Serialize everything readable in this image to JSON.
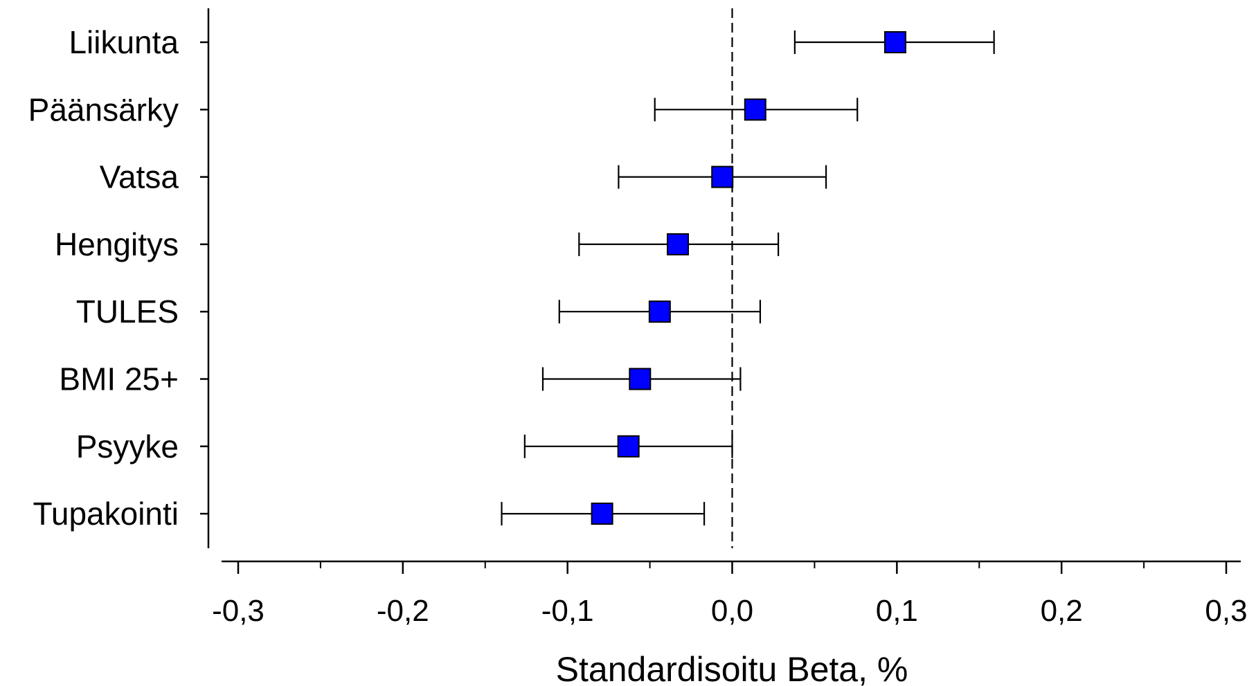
{
  "chart_data": {
    "type": "scatter",
    "subtype": "forest-plot",
    "title": "",
    "xlabel": "Standardisoitu Beta, %",
    "ylabel": "",
    "xlim": [
      -0.3,
      0.3
    ],
    "x_ticks": [
      -0.3,
      -0.2,
      -0.1,
      0.0,
      0.1,
      0.2,
      0.3
    ],
    "x_tick_labels": [
      "-0,3",
      "-0,2",
      "-0,1",
      "0,0",
      "0,1",
      "0,2",
      "0,3"
    ],
    "reference_line": 0.0,
    "grid": false,
    "marker_color": "#0000ff",
    "categories": [
      "Liikunta",
      "Päänsärky",
      "Vatsa",
      "Hengitys",
      "TULES",
      "BMI 25+",
      "Psyyke",
      "Tupakointi"
    ],
    "series": [
      {
        "estimates": [
          0.099,
          0.014,
          -0.006,
          -0.033,
          -0.044,
          -0.056,
          -0.063,
          -0.079
        ],
        "ci_low": [
          0.038,
          -0.047,
          -0.069,
          -0.093,
          -0.105,
          -0.115,
          -0.126,
          -0.14
        ],
        "ci_high": [
          0.159,
          0.076,
          0.057,
          0.028,
          0.017,
          0.005,
          0.0,
          -0.017
        ]
      }
    ]
  }
}
